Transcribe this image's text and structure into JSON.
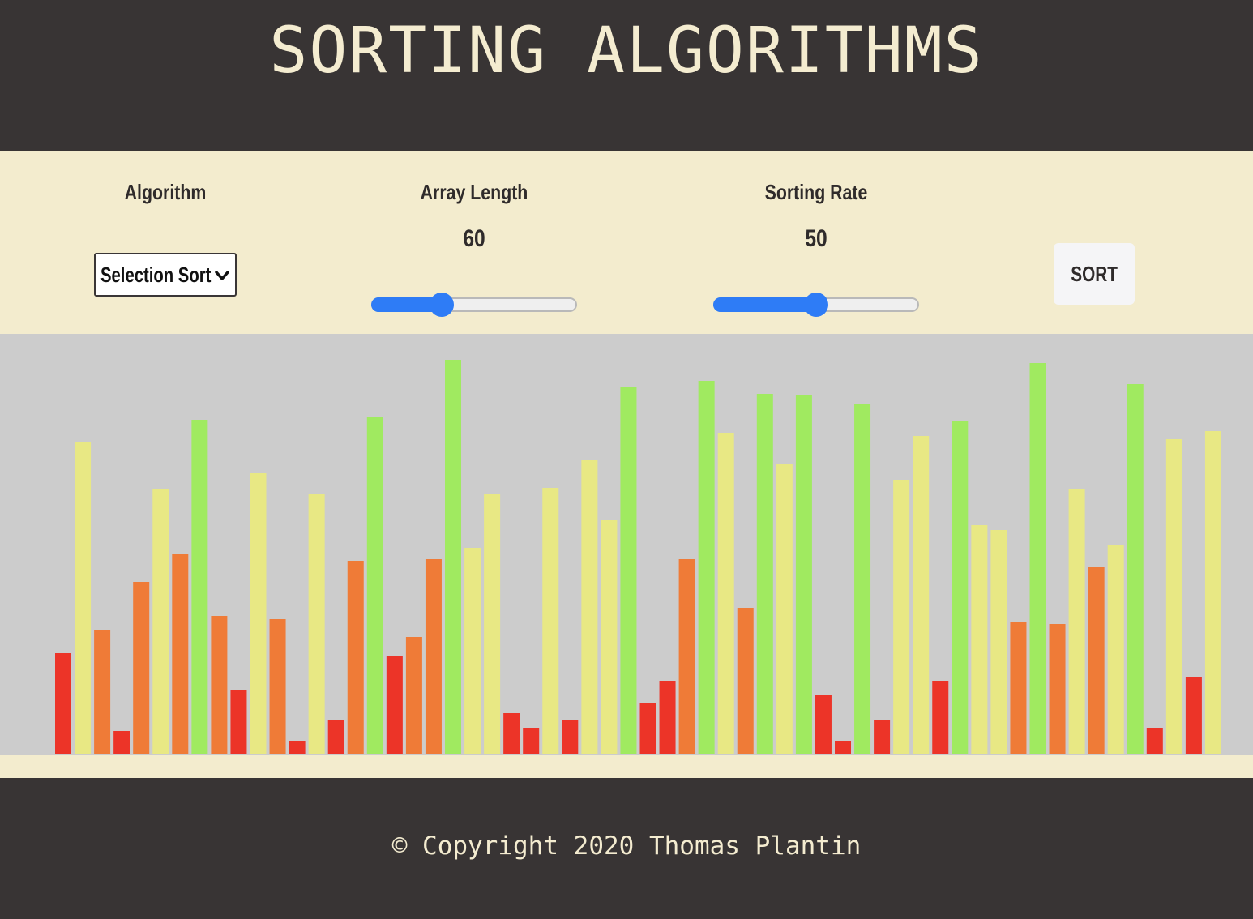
{
  "header": {
    "title": "SORTING ALGORITHMS"
  },
  "controls": {
    "algorithm": {
      "label": "Algorithm",
      "selected": "Selection Sort"
    },
    "array_length": {
      "label": "Array Length",
      "value": "60",
      "slider_fraction": 0.32
    },
    "sorting_rate": {
      "label": "Sorting Rate",
      "value": "50",
      "slider_fraction": 0.5
    },
    "sort_button": {
      "label": "SORT"
    },
    "slider_color": "#2e7cf6"
  },
  "chart_data": {
    "type": "bar",
    "ylim": [
      0,
      500
    ],
    "values": [
      124,
      384,
      152,
      28,
      212,
      326,
      246,
      412,
      170,
      78,
      346,
      166,
      16,
      320,
      42,
      238,
      416,
      120,
      144,
      240,
      486,
      254,
      320,
      50,
      32,
      328,
      42,
      362,
      288,
      452,
      62,
      90,
      240,
      460,
      396,
      180,
      444,
      358,
      442,
      72,
      16,
      432,
      42,
      338,
      392,
      90,
      410,
      282,
      276,
      162,
      482,
      160,
      326,
      230,
      258,
      456,
      32,
      388,
      94,
      398
    ],
    "color_bins": [
      {
        "max": 125,
        "color": "#ec3428"
      },
      {
        "max": 250,
        "color": "#ef7b37"
      },
      {
        "max": 400,
        "color": "#e8e884"
      },
      {
        "max": 500,
        "color": "#a0ea60"
      }
    ],
    "background": "#cccccc"
  },
  "footer": {
    "copyright": "© Copyright 2020 Thomas Plantin"
  }
}
